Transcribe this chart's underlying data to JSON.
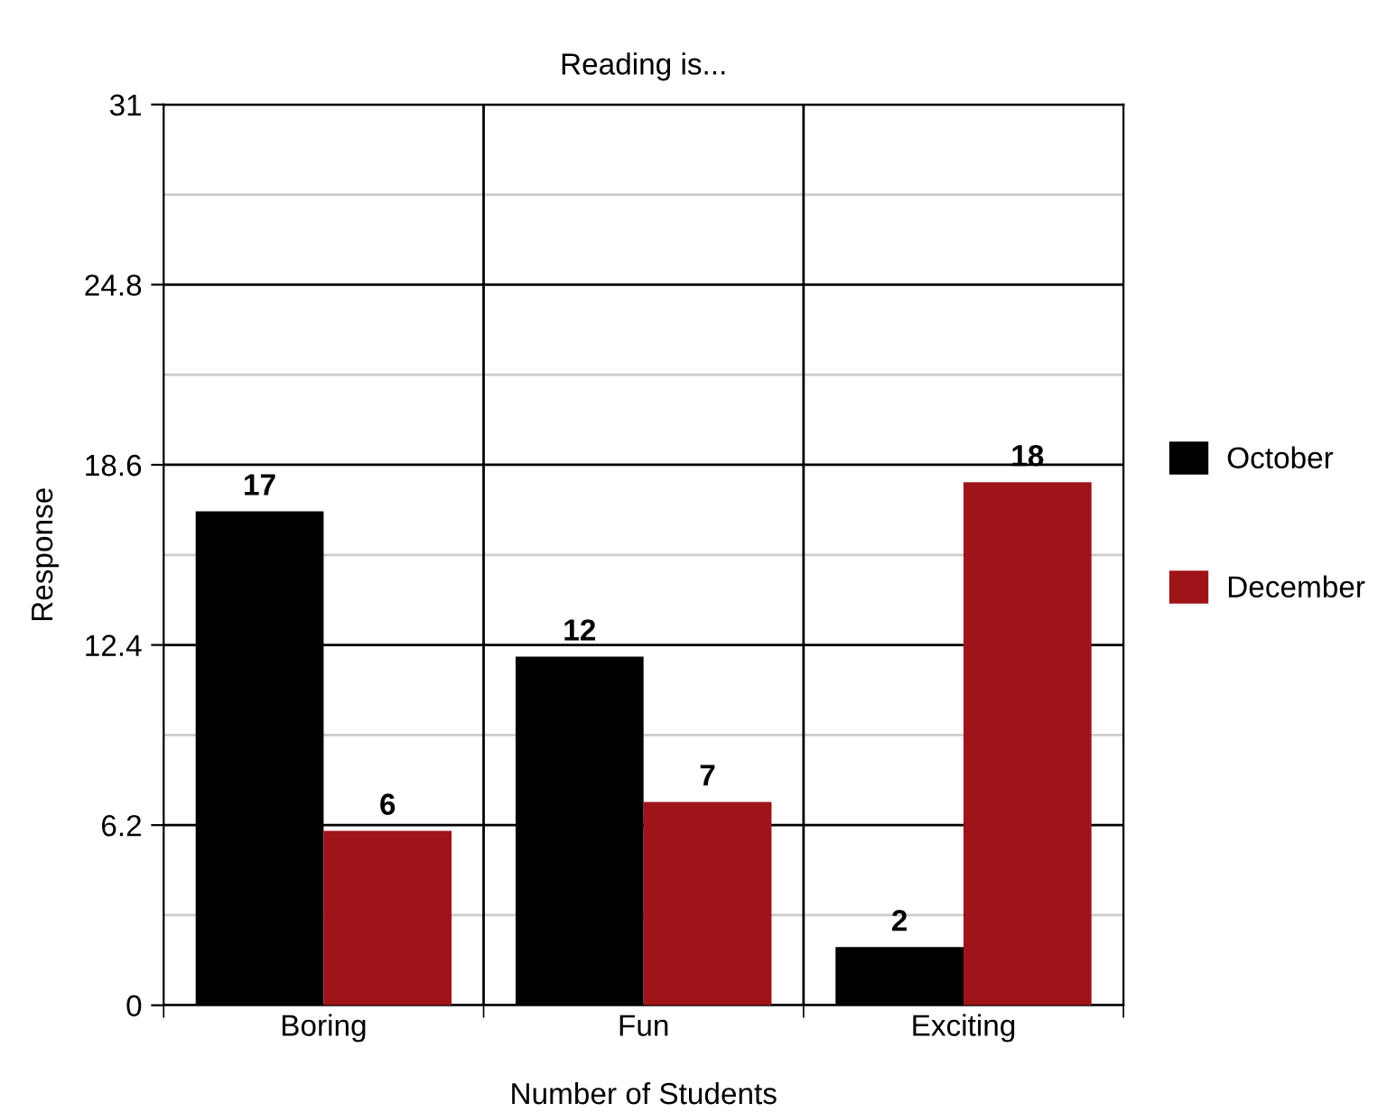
{
  "chart_data": {
    "type": "bar",
    "title": "Reading is...",
    "xlabel": "Number of Students",
    "ylabel": "Response",
    "categories": [
      "Boring",
      "Fun",
      "Exciting"
    ],
    "series": [
      {
        "name": "October",
        "color": "#000000",
        "values": [
          17,
          12,
          2
        ]
      },
      {
        "name": "December",
        "color": "#9e1418",
        "values": [
          6,
          7,
          18
        ]
      }
    ],
    "ylim": [
      0,
      31
    ],
    "yticks": [
      0,
      6.2,
      12.4,
      18.6,
      24.8,
      31
    ],
    "grid": true,
    "legend": "right",
    "data_labels": true
  }
}
